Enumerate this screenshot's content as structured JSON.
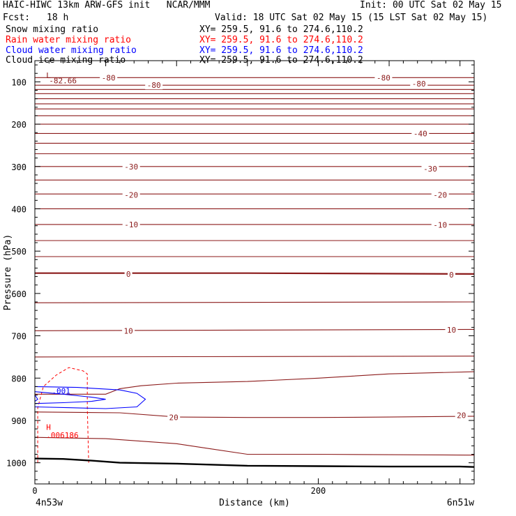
{
  "header": {
    "title_left": "HAIC-HIWC 13km ARW-GFS init   NCAR/MMM",
    "init": "Init: 00 UTC Sat 02 May 15",
    "fcst_label": "Fcst:",
    "fcst_value": "18 h",
    "valid": "Valid: 18 UTC Sat 02 May 15 (15 LST Sat 02 May 15)"
  },
  "fields": [
    {
      "name": "Snow mixing ratio",
      "xy": "XY= 259.5, 91.6 to 274.6,110.2",
      "color": "#000000"
    },
    {
      "name": "Rain water mixing ratio",
      "xy": "XY= 259.5, 91.6 to 274.6,110.2",
      "color": "#ff0000"
    },
    {
      "name": "Cloud water mixing ratio",
      "xy": "XY= 259.5, 91.6 to 274.6,110.2",
      "color": "#0000ff"
    },
    {
      "name": "Cloud ice mixing ratio",
      "xy": "XY= 259.5, 91.6 to 274.6,110.2",
      "color": "#000000"
    }
  ],
  "chart_data": {
    "type": "contour",
    "xlabel": "Distance (km)",
    "ylabel": "Pressure (hPa)",
    "xlim": [
      0,
      310
    ],
    "ylim": [
      1050,
      50
    ],
    "x_ticks": [
      {
        "value": 0,
        "label": "0"
      },
      {
        "value": 50,
        "label": ""
      },
      {
        "value": 100,
        "label": ""
      },
      {
        "value": 150,
        "label": ""
      },
      {
        "value": 200,
        "label": "200"
      },
      {
        "value": 250,
        "label": ""
      },
      {
        "value": 300,
        "label": ""
      }
    ],
    "y_ticks": [
      100,
      200,
      300,
      400,
      500,
      600,
      700,
      800,
      900,
      1000
    ],
    "endpoint_left": "4n53w",
    "endpoint_right": "6n51w",
    "temperature_contour_color": "#8b1a1a",
    "temperature_contours": [
      {
        "points": [
          [
            0,
            90
          ],
          [
            310,
            90
          ]
        ]
      },
      {
        "points": [
          [
            0,
            108
          ],
          [
            310,
            108
          ]
        ]
      },
      {
        "points": [
          [
            0,
            118
          ],
          [
            310,
            118
          ]
        ]
      },
      {
        "points": [
          [
            0,
            128
          ],
          [
            310,
            128
          ]
        ]
      },
      {
        "points": [
          [
            0,
            140
          ],
          [
            310,
            140
          ]
        ]
      },
      {
        "points": [
          [
            0,
            152
          ],
          [
            310,
            152
          ]
        ]
      },
      {
        "points": [
          [
            0,
            164
          ],
          [
            310,
            164
          ]
        ]
      },
      {
        "points": [
          [
            0,
            180
          ],
          [
            310,
            180
          ]
        ]
      },
      {
        "points": [
          [
            0,
            200
          ],
          [
            310,
            200
          ]
        ]
      },
      {
        "points": [
          [
            0,
            222
          ],
          [
            310,
            222
          ]
        ]
      },
      {
        "points": [
          [
            0,
            245
          ],
          [
            310,
            245
          ]
        ]
      },
      {
        "points": [
          [
            0,
            270
          ],
          [
            310,
            270
          ]
        ]
      },
      {
        "points": [
          [
            0,
            300
          ],
          [
            310,
            300
          ]
        ]
      },
      {
        "points": [
          [
            0,
            332
          ],
          [
            310,
            332
          ]
        ]
      },
      {
        "points": [
          [
            0,
            365
          ],
          [
            310,
            365
          ]
        ]
      },
      {
        "points": [
          [
            0,
            400
          ],
          [
            310,
            400
          ]
        ]
      },
      {
        "points": [
          [
            0,
            437
          ],
          [
            310,
            437
          ]
        ]
      },
      {
        "points": [
          [
            0,
            475
          ],
          [
            310,
            475
          ]
        ]
      },
      {
        "points": [
          [
            0,
            513
          ],
          [
            310,
            513
          ]
        ]
      },
      {
        "points": [
          [
            0,
            552
          ],
          [
            150,
            552
          ],
          [
            310,
            554
          ]
        ],
        "bold": true
      },
      {
        "points": [
          [
            0,
            622
          ],
          [
            310,
            620
          ]
        ]
      },
      {
        "points": [
          [
            0,
            688
          ],
          [
            310,
            685
          ]
        ]
      },
      {
        "points": [
          [
            0,
            750
          ],
          [
            310,
            748
          ]
        ]
      },
      {
        "points": [
          [
            0,
            838
          ],
          [
            50,
            838
          ],
          [
            60,
            825
          ],
          [
            75,
            818
          ],
          [
            100,
            812
          ],
          [
            150,
            808
          ],
          [
            200,
            800
          ],
          [
            250,
            790
          ],
          [
            310,
            785
          ]
        ]
      },
      {
        "points": [
          [
            0,
            880
          ],
          [
            60,
            882
          ],
          [
            100,
            892
          ],
          [
            150,
            893
          ],
          [
            200,
            893
          ],
          [
            250,
            892
          ],
          [
            310,
            890
          ]
        ]
      },
      {
        "points": [
          [
            0,
            940
          ],
          [
            50,
            943
          ],
          [
            100,
            955
          ],
          [
            120,
            965
          ],
          [
            150,
            980
          ],
          [
            200,
            980
          ],
          [
            310,
            982
          ]
        ]
      }
    ],
    "contour_labels": [
      {
        "x": 52,
        "p": 90,
        "text": "-80"
      },
      {
        "x": 84,
        "p": 108,
        "text": "-80"
      },
      {
        "x": 246,
        "p": 90,
        "text": "-80"
      },
      {
        "x": 271,
        "p": 104,
        "text": "-80"
      },
      {
        "x": 272,
        "p": 222,
        "text": "-40"
      },
      {
        "x": 68,
        "p": 300,
        "text": "-30"
      },
      {
        "x": 279,
        "p": 305,
        "text": "-30"
      },
      {
        "x": 68,
        "p": 367,
        "text": "-20"
      },
      {
        "x": 286,
        "p": 367,
        "text": "-20"
      },
      {
        "x": 68,
        "p": 437,
        "text": "-10"
      },
      {
        "x": 286,
        "p": 438,
        "text": "-10"
      },
      {
        "x": 66,
        "p": 554,
        "text": "0"
      },
      {
        "x": 294,
        "p": 556,
        "text": "0"
      },
      {
        "x": 66,
        "p": 688,
        "text": "10"
      },
      {
        "x": 294,
        "p": 686,
        "text": "10"
      },
      {
        "x": 98,
        "p": 893,
        "text": "20"
      },
      {
        "x": 301,
        "p": 888,
        "text": "20"
      }
    ],
    "extrema": [
      {
        "x": 8,
        "p": 85,
        "text": "L",
        "color": "#8b1a1a"
      },
      {
        "x": 10,
        "p": 97,
        "text": "-82.66",
        "color": "#8b1a1a"
      },
      {
        "x": 8,
        "p": 916,
        "text": "H",
        "color": "#ff0000"
      },
      {
        "x": 8,
        "p": 935,
        "text": ".006186",
        "color": "#ff0000"
      }
    ],
    "rain_contour": {
      "color": "#ff0000",
      "dashed": true,
      "points": [
        [
          2,
          1000
        ],
        [
          2,
          870
        ],
        [
          6,
          820
        ],
        [
          15,
          793
        ],
        [
          24,
          775
        ],
        [
          34,
          783
        ],
        [
          37,
          790
        ],
        [
          37,
          870
        ],
        [
          38,
          1000
        ]
      ]
    },
    "cloud_water_contours": [
      {
        "color": "#0000ff",
        "points": [
          [
            0,
            820
          ],
          [
            30,
            822
          ],
          [
            60,
            828
          ],
          [
            72,
            836
          ],
          [
            78,
            850
          ],
          [
            72,
            868
          ],
          [
            50,
            872
          ],
          [
            25,
            870
          ],
          [
            0,
            868
          ]
        ]
      },
      {
        "color": "#0000ff",
        "points": [
          [
            0,
            832
          ],
          [
            20,
            838
          ],
          [
            40,
            845
          ],
          [
            50,
            850
          ],
          [
            40,
            855
          ],
          [
            20,
            858
          ],
          [
            0,
            860
          ]
        ]
      },
      {
        "color": "#0000ff",
        "points": [
          [
            0,
            840
          ],
          [
            2,
            850
          ],
          [
            0,
            855
          ]
        ]
      }
    ],
    "cloud_water_label": {
      "x": 12,
      "p": 830,
      "text": ".001"
    },
    "surface": {
      "color": "#000000",
      "points": [
        [
          0,
          990
        ],
        [
          20,
          991
        ],
        [
          40,
          995
        ],
        [
          60,
          1000
        ],
        [
          100,
          1002
        ],
        [
          150,
          1007
        ],
        [
          200,
          1008
        ],
        [
          250,
          1009
        ],
        [
          300,
          1009
        ],
        [
          310,
          1010
        ]
      ]
    }
  }
}
